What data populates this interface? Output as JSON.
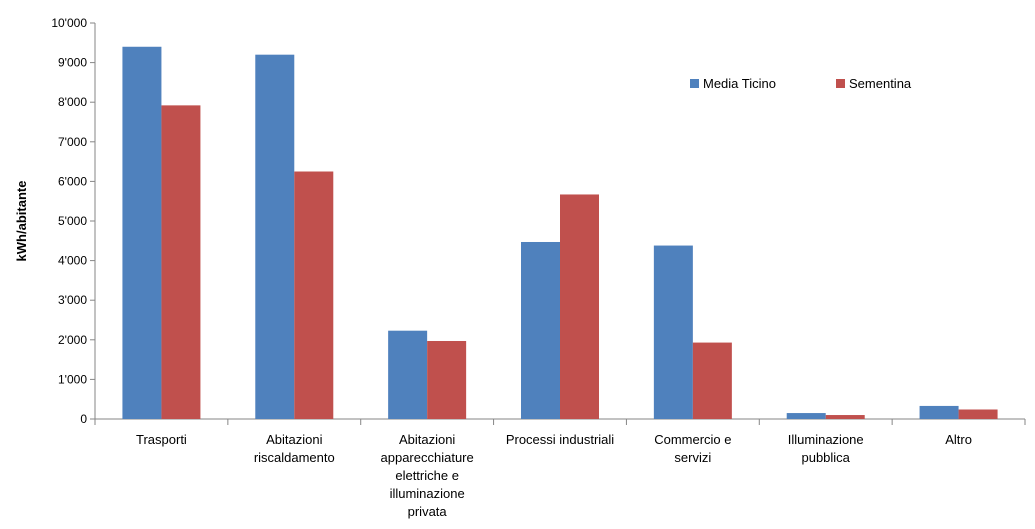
{
  "chart_data": {
    "type": "bar",
    "title": "",
    "xlabel": "",
    "ylabel": "kWh/abitante",
    "ylim": [
      0,
      10000
    ],
    "yticks": [
      0,
      1000,
      2000,
      3000,
      4000,
      5000,
      6000,
      7000,
      8000,
      9000,
      10000
    ],
    "ytick_labels": [
      "0",
      "1'000",
      "2'000",
      "3'000",
      "4'000",
      "5'000",
      "6'000",
      "7'000",
      "8'000",
      "9'000",
      "10'000"
    ],
    "categories": [
      "Trasporti",
      "Abitazioni riscaldamento",
      "Abitazioni apparecchiature elettriche e illuminazione privata",
      "Processi industriali",
      "Commercio e servizi",
      "Illuminazione pubblica",
      "Altro"
    ],
    "category_lines": [
      [
        "Trasporti"
      ],
      [
        "Abitazioni",
        "riscaldamento"
      ],
      [
        "Abitazioni",
        "apparecchiature",
        "elettriche e",
        "illuminazione",
        "privata"
      ],
      [
        "Processi industriali"
      ],
      [
        "Commercio e",
        "servizi"
      ],
      [
        "Illuminazione",
        "pubblica"
      ],
      [
        "Altro"
      ]
    ],
    "series": [
      {
        "name": "Media Ticino",
        "color": "#4F81BD",
        "values": [
          9400,
          9200,
          2230,
          4470,
          4380,
          150,
          330
        ]
      },
      {
        "name": "Sementina",
        "color": "#C0504D",
        "values": [
          7920,
          6250,
          1970,
          5670,
          1930,
          100,
          240
        ]
      }
    ],
    "legend": "top-right",
    "grid": false
  }
}
